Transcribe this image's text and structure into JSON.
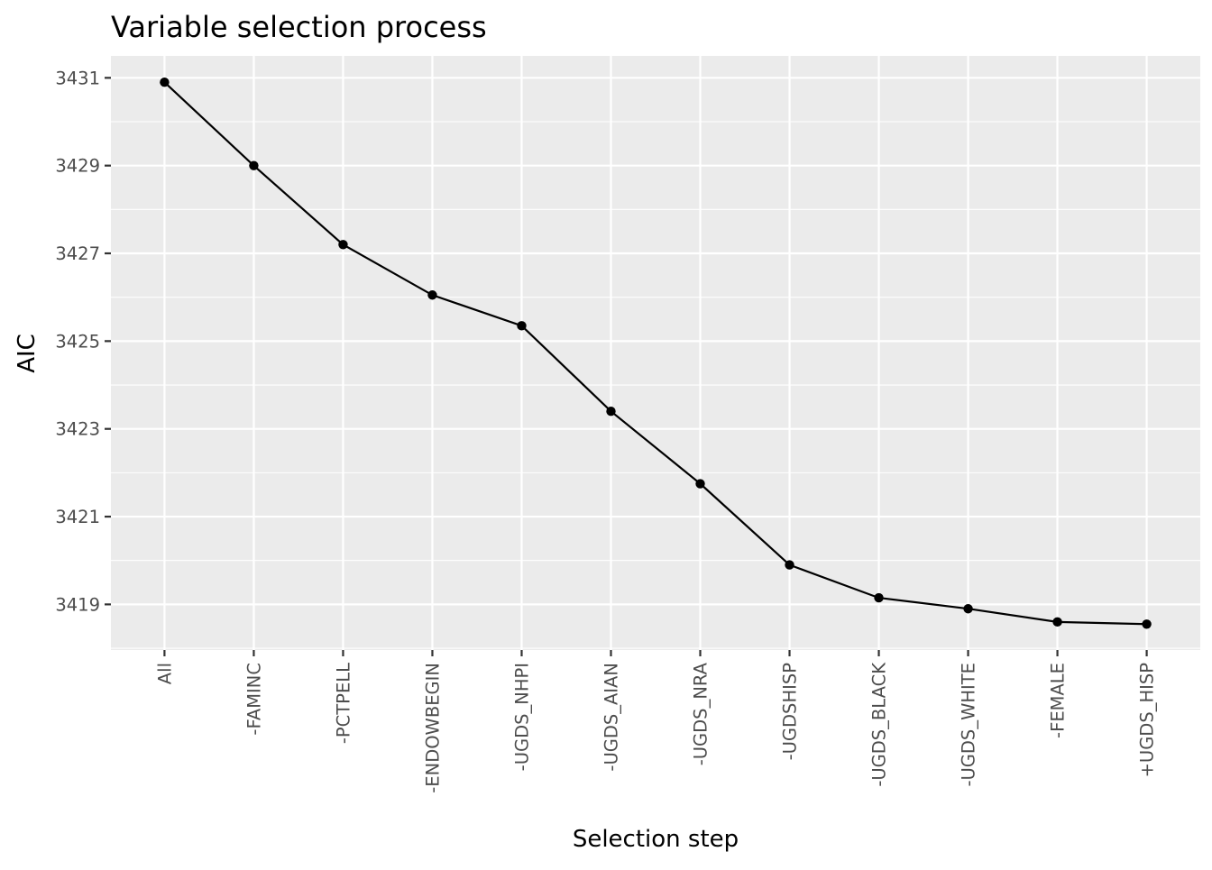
{
  "chart_data": {
    "type": "line",
    "title": "Variable selection process",
    "xlabel": "Selection step",
    "ylabel": "AIC",
    "categories": [
      "All",
      "-FAMINC",
      "-PCTPELL",
      "-ENDOWBEGIN",
      "-UGDS_NHPI",
      "-UGDS_AIAN",
      "-UGDS_NRA",
      "-UGDSHISP",
      "-UGDS_BLACK",
      "-UGDS_WHITE",
      "-FEMALE",
      "+UGDS_HISP"
    ],
    "values": [
      3430.9,
      3429.0,
      3427.2,
      3426.05,
      3425.35,
      3423.4,
      3421.75,
      3419.9,
      3419.15,
      3418.9,
      3418.6,
      3418.55
    ],
    "yticks": [
      3419,
      3421,
      3423,
      3425,
      3427,
      3429,
      3431
    ],
    "ytick_labels": [
      "3419",
      "3421",
      "3423",
      "3425",
      "3427",
      "3429",
      "3431"
    ],
    "ylim": [
      3417.96,
      3431.5
    ],
    "grid": true,
    "background": "#ebebeb",
    "line_color": "#000000",
    "point_color": "#000000"
  }
}
